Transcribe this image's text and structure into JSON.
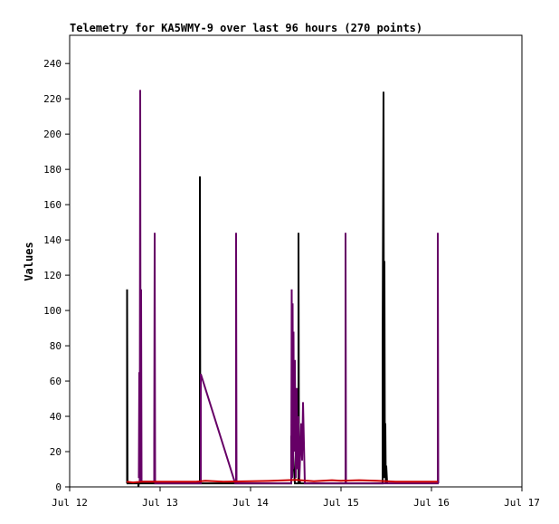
{
  "chart_data": {
    "type": "line",
    "title": "Telemetry for KA5WMY-9 over last 96 hours (270 points)",
    "xlabel": "",
    "ylabel": "Values",
    "xlim": [
      0,
      5
    ],
    "ylim": [
      0,
      256
    ],
    "yticks": [
      0,
      20,
      40,
      60,
      80,
      100,
      120,
      140,
      160,
      180,
      200,
      220,
      240
    ],
    "xticks": [
      {
        "label": "Jul 12",
        "x": 0
      },
      {
        "label": "Jul 13",
        "x": 1
      },
      {
        "label": "Jul 14",
        "x": 2
      },
      {
        "label": "Jul 15",
        "x": 3
      },
      {
        "label": "Jul 16",
        "x": 4
      },
      {
        "label": "Jul 17",
        "x": 5
      }
    ],
    "grid": false,
    "legend": "none",
    "series": [
      {
        "color": "#000000",
        "points": [
          [
            0.635,
            2
          ],
          [
            0.635,
            112
          ],
          [
            0.64,
            2
          ],
          [
            0.76,
            2
          ],
          [
            0.76,
            0
          ],
          [
            0.765,
            2
          ],
          [
            1.44,
            2
          ],
          [
            1.44,
            176
          ],
          [
            1.445,
            2
          ],
          [
            2.45,
            2
          ],
          [
            2.45,
            29
          ],
          [
            2.47,
            18
          ],
          [
            2.49,
            2
          ],
          [
            2.53,
            2
          ],
          [
            2.53,
            144
          ],
          [
            2.535,
            5
          ],
          [
            2.55,
            2
          ],
          [
            3.46,
            2
          ],
          [
            3.46,
            80
          ],
          [
            3.47,
            224
          ],
          [
            3.475,
            5
          ],
          [
            3.48,
            128
          ],
          [
            3.485,
            10
          ],
          [
            3.49,
            36
          ],
          [
            3.495,
            2
          ],
          [
            3.5,
            12
          ],
          [
            3.51,
            2
          ]
        ]
      },
      {
        "color": "#660066",
        "points": [
          [
            0.765,
            5
          ],
          [
            0.77,
            65
          ],
          [
            0.775,
            3
          ],
          [
            0.78,
            225
          ],
          [
            0.785,
            5
          ],
          [
            0.79,
            112
          ],
          [
            0.795,
            3
          ],
          [
            0.935,
            3
          ],
          [
            0.935,
            24
          ],
          [
            0.94,
            144
          ],
          [
            0.945,
            2
          ],
          [
            1.45,
            2
          ],
          [
            1.45,
            64
          ],
          [
            1.83,
            2
          ],
          [
            1.84,
            2
          ],
          [
            1.84,
            144
          ],
          [
            1.845,
            2
          ],
          [
            2.45,
            2
          ],
          [
            2.455,
            112
          ],
          [
            2.46,
            5
          ],
          [
            2.465,
            104
          ],
          [
            2.47,
            10
          ],
          [
            2.475,
            88
          ],
          [
            2.48,
            20
          ],
          [
            2.49,
            72
          ],
          [
            2.5,
            5
          ],
          [
            2.51,
            56
          ],
          [
            2.52,
            10
          ],
          [
            2.53,
            40
          ],
          [
            2.54,
            5
          ],
          [
            2.56,
            36
          ],
          [
            2.57,
            15
          ],
          [
            2.58,
            48
          ],
          [
            2.6,
            2
          ],
          [
            3.05,
            2
          ],
          [
            3.05,
            144
          ],
          [
            3.055,
            2
          ],
          [
            4.07,
            2
          ],
          [
            4.07,
            144
          ],
          [
            4.075,
            2
          ]
        ]
      },
      {
        "color": "#cc0000",
        "points": [
          [
            0.63,
            3
          ],
          [
            0.7,
            2.5
          ],
          [
            0.8,
            3
          ],
          [
            1.0,
            3
          ],
          [
            1.2,
            3
          ],
          [
            1.4,
            3
          ],
          [
            1.5,
            3.5
          ],
          [
            1.7,
            3
          ],
          [
            2.0,
            3.2
          ],
          [
            2.2,
            3.4
          ],
          [
            2.5,
            4
          ],
          [
            2.7,
            3.2
          ],
          [
            2.9,
            3.8
          ],
          [
            3.0,
            3.5
          ],
          [
            3.2,
            3.8
          ],
          [
            3.4,
            3.5
          ],
          [
            3.6,
            3
          ],
          [
            3.8,
            3
          ],
          [
            4.0,
            3
          ],
          [
            4.07,
            3
          ]
        ]
      }
    ]
  }
}
